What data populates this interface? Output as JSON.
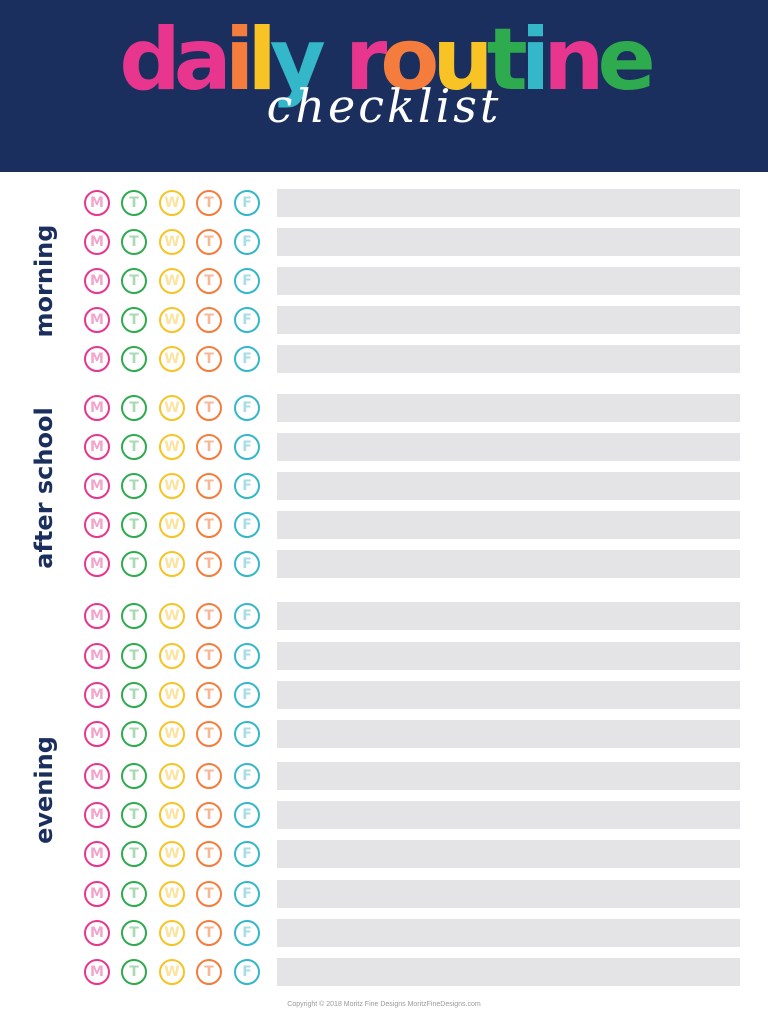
{
  "header": {
    "title_chars": [
      {
        "ch": "d",
        "color": "#e8368f"
      },
      {
        "ch": "a",
        "color": "#e8368f"
      },
      {
        "ch": "i",
        "color": "#f47c3c"
      },
      {
        "ch": "l",
        "color": "#f7c325"
      },
      {
        "ch": "y",
        "color": "#34b7c9"
      },
      {
        "ch": " ",
        "color": "#ffffff"
      },
      {
        "ch": "r",
        "color": "#e8368f"
      },
      {
        "ch": "o",
        "color": "#f47c3c"
      },
      {
        "ch": "u",
        "color": "#f7c325"
      },
      {
        "ch": "t",
        "color": "#2eaa4f"
      },
      {
        "ch": "i",
        "color": "#34b7c9"
      },
      {
        "ch": "n",
        "color": "#e8368f"
      },
      {
        "ch": "e",
        "color": "#2eaa4f"
      }
    ],
    "subtitle": "checklist"
  },
  "days": [
    {
      "letter": "M",
      "color": "#e8368f"
    },
    {
      "letter": "T",
      "color": "#2eaa4f"
    },
    {
      "letter": "W",
      "color": "#f7c325"
    },
    {
      "letter": "T",
      "color": "#f47c3c"
    },
    {
      "letter": "F",
      "color": "#34b7c9"
    }
  ],
  "sections": [
    {
      "name": "morning",
      "rows": 5
    },
    {
      "name": "after school",
      "rows": 5
    },
    {
      "name": "evening",
      "rows": 10
    }
  ],
  "footer": "Copyright © 2018 Moritz Fine Designs  MoritzFineDesigns.com"
}
